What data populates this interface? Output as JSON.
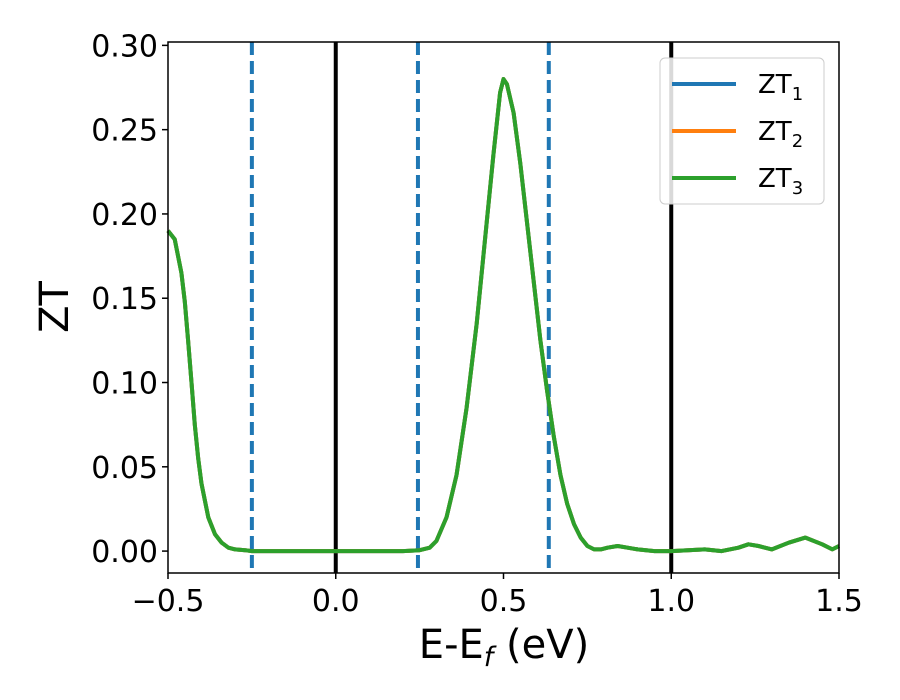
{
  "chart_data": {
    "type": "line",
    "xlabel": "E-E",
    "xlabel_sub": "f",
    "xlabel_unit": " (eV)",
    "ylabel": "ZT",
    "xlim": [
      -0.5,
      1.5
    ],
    "ylim": [
      -0.013,
      0.302
    ],
    "x_ticks": [
      -0.5,
      0.0,
      0.5,
      1.0,
      1.5
    ],
    "x_tick_labels": [
      "−0.5",
      "0.0",
      "0.5",
      "1.0",
      "1.5"
    ],
    "y_ticks": [
      0.0,
      0.05,
      0.1,
      0.15,
      0.2,
      0.25,
      0.3
    ],
    "y_tick_labels": [
      "0.00",
      "0.05",
      "0.10",
      "0.15",
      "0.20",
      "0.25",
      "0.30"
    ],
    "grid": false,
    "legend_position": "top-right",
    "vertical_lines": [
      {
        "x": -0.25,
        "style": "dashed",
        "color": "#1f77b4"
      },
      {
        "x": 0.0,
        "style": "solid",
        "color": "#000000"
      },
      {
        "x": 0.245,
        "style": "dashed",
        "color": "#1f77b4"
      },
      {
        "x": 0.635,
        "style": "dashed",
        "color": "#1f77b4"
      },
      {
        "x": 1.0,
        "style": "solid",
        "color": "#000000"
      }
    ],
    "series": [
      {
        "name": "ZT",
        "sub": "1",
        "color": "#1f77b4",
        "x": [
          -0.5,
          -0.48,
          -0.46,
          -0.45,
          -0.44,
          -0.43,
          -0.42,
          -0.41,
          -0.4,
          -0.38,
          -0.36,
          -0.34,
          -0.32,
          -0.3,
          -0.27,
          -0.25,
          -0.2,
          -0.1,
          0.0,
          0.1,
          0.2,
          0.25,
          0.28,
          0.3,
          0.33,
          0.36,
          0.39,
          0.42,
          0.45,
          0.47,
          0.49,
          0.5,
          0.51,
          0.53,
          0.55,
          0.57,
          0.59,
          0.61,
          0.63,
          0.65,
          0.67,
          0.69,
          0.71,
          0.73,
          0.75,
          0.77,
          0.79,
          0.81,
          0.84,
          0.87,
          0.9,
          0.95,
          1.0,
          1.05,
          1.1,
          1.15,
          1.2,
          1.23,
          1.26,
          1.3,
          1.35,
          1.4,
          1.45,
          1.48,
          1.5
        ],
        "y": [
          0.19,
          0.185,
          0.165,
          0.148,
          0.125,
          0.1,
          0.075,
          0.055,
          0.04,
          0.02,
          0.01,
          0.005,
          0.002,
          0.001,
          0.0005,
          0.0,
          0.0,
          0.0,
          0.0,
          0.0,
          0.0,
          0.0005,
          0.002,
          0.006,
          0.02,
          0.045,
          0.085,
          0.135,
          0.195,
          0.235,
          0.272,
          0.28,
          0.277,
          0.26,
          0.23,
          0.195,
          0.16,
          0.125,
          0.095,
          0.068,
          0.045,
          0.028,
          0.016,
          0.008,
          0.003,
          0.001,
          0.001,
          0.002,
          0.003,
          0.002,
          0.001,
          0.0,
          0.0,
          0.0005,
          0.001,
          0.0,
          0.002,
          0.004,
          0.003,
          0.001,
          0.005,
          0.008,
          0.004,
          0.001,
          0.003
        ]
      },
      {
        "name": "ZT",
        "sub": "2",
        "color": "#ff7f0e",
        "x": [
          -0.5,
          -0.48,
          -0.46,
          -0.45,
          -0.44,
          -0.43,
          -0.42,
          -0.41,
          -0.4,
          -0.38,
          -0.36,
          -0.34,
          -0.32,
          -0.3,
          -0.27,
          -0.25,
          -0.2,
          -0.1,
          0.0,
          0.1,
          0.2,
          0.25,
          0.28,
          0.3,
          0.33,
          0.36,
          0.39,
          0.42,
          0.45,
          0.47,
          0.49,
          0.5,
          0.51,
          0.53,
          0.55,
          0.57,
          0.59,
          0.61,
          0.63,
          0.65,
          0.67,
          0.69,
          0.71,
          0.73,
          0.75,
          0.77,
          0.79,
          0.81,
          0.84,
          0.87,
          0.9,
          0.95,
          1.0,
          1.05,
          1.1,
          1.15,
          1.2,
          1.23,
          1.26,
          1.3,
          1.35,
          1.4,
          1.45,
          1.48,
          1.5
        ],
        "y": [
          0.19,
          0.185,
          0.165,
          0.148,
          0.125,
          0.1,
          0.075,
          0.055,
          0.04,
          0.02,
          0.01,
          0.005,
          0.002,
          0.001,
          0.0005,
          0.0,
          0.0,
          0.0,
          0.0,
          0.0,
          0.0,
          0.0005,
          0.002,
          0.006,
          0.02,
          0.045,
          0.085,
          0.135,
          0.195,
          0.235,
          0.272,
          0.28,
          0.277,
          0.26,
          0.23,
          0.195,
          0.16,
          0.125,
          0.095,
          0.068,
          0.045,
          0.028,
          0.016,
          0.008,
          0.003,
          0.001,
          0.001,
          0.002,
          0.003,
          0.002,
          0.001,
          0.0,
          0.0,
          0.0005,
          0.001,
          0.0,
          0.002,
          0.004,
          0.003,
          0.001,
          0.005,
          0.008,
          0.004,
          0.001,
          0.003
        ]
      },
      {
        "name": "ZT",
        "sub": "3",
        "color": "#2ca02c",
        "x": [
          -0.5,
          -0.48,
          -0.46,
          -0.45,
          -0.44,
          -0.43,
          -0.42,
          -0.41,
          -0.4,
          -0.38,
          -0.36,
          -0.34,
          -0.32,
          -0.3,
          -0.27,
          -0.25,
          -0.2,
          -0.1,
          0.0,
          0.1,
          0.2,
          0.25,
          0.28,
          0.3,
          0.33,
          0.36,
          0.39,
          0.42,
          0.45,
          0.47,
          0.49,
          0.5,
          0.51,
          0.53,
          0.55,
          0.57,
          0.59,
          0.61,
          0.63,
          0.65,
          0.67,
          0.69,
          0.71,
          0.73,
          0.75,
          0.77,
          0.79,
          0.81,
          0.84,
          0.87,
          0.9,
          0.95,
          1.0,
          1.05,
          1.1,
          1.15,
          1.2,
          1.23,
          1.26,
          1.3,
          1.35,
          1.4,
          1.45,
          1.48,
          1.5
        ],
        "y": [
          0.19,
          0.185,
          0.165,
          0.148,
          0.125,
          0.1,
          0.075,
          0.055,
          0.04,
          0.02,
          0.01,
          0.005,
          0.002,
          0.001,
          0.0005,
          0.0,
          0.0,
          0.0,
          0.0,
          0.0,
          0.0,
          0.0005,
          0.002,
          0.006,
          0.02,
          0.045,
          0.085,
          0.135,
          0.195,
          0.235,
          0.272,
          0.28,
          0.277,
          0.26,
          0.23,
          0.195,
          0.16,
          0.125,
          0.095,
          0.068,
          0.045,
          0.028,
          0.016,
          0.008,
          0.003,
          0.001,
          0.001,
          0.002,
          0.003,
          0.002,
          0.001,
          0.0,
          0.0,
          0.0005,
          0.001,
          0.0,
          0.002,
          0.004,
          0.003,
          0.001,
          0.005,
          0.008,
          0.004,
          0.001,
          0.003
        ]
      }
    ]
  }
}
